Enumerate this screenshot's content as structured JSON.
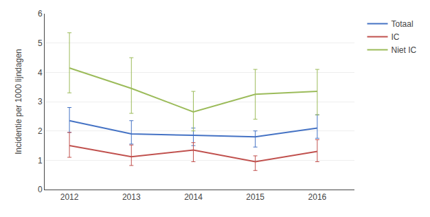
{
  "chart_data": {
    "type": "line",
    "x": [
      2012,
      2013,
      2014,
      2015,
      2016
    ],
    "series": [
      {
        "name": "Totaal",
        "color": "#4472C4",
        "values": [
          2.35,
          1.9,
          1.85,
          1.8,
          2.1
        ],
        "err_lo": [
          0.4,
          0.35,
          0.35,
          0.35,
          0.35
        ],
        "err_hi": [
          0.45,
          0.45,
          0.25,
          0.2,
          0.45
        ]
      },
      {
        "name": "IC",
        "color": "#C0504D",
        "values": [
          1.5,
          1.12,
          1.35,
          0.95,
          1.3
        ],
        "err_lo": [
          0.4,
          0.3,
          0.4,
          0.3,
          0.35
        ],
        "err_hi": [
          0.45,
          0.4,
          0.25,
          0.2,
          0.4
        ]
      },
      {
        "name": "Niet IC",
        "color": "#9BBB59",
        "values": [
          4.15,
          3.45,
          2.65,
          3.25,
          3.35
        ],
        "err_lo": [
          0.85,
          0.85,
          0.65,
          0.85,
          0.8
        ],
        "err_hi": [
          1.2,
          1.05,
          0.7,
          0.85,
          0.75
        ]
      }
    ],
    "ylabel": "Incidentie per 1000 lijndagen",
    "xlim": [
      2011.6,
      2016.6
    ],
    "xticks": [
      2012,
      2013,
      2014,
      2015,
      2016
    ],
    "ylim": [
      0,
      6
    ],
    "yticks": [
      0,
      1,
      2,
      3,
      4,
      5,
      6
    ],
    "grid": "y",
    "legend": "right"
  }
}
